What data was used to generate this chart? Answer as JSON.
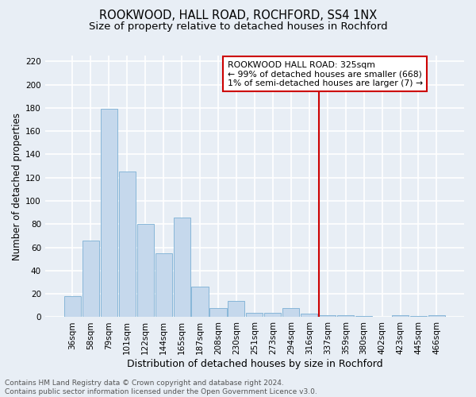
{
  "title": "ROOKWOOD, HALL ROAD, ROCHFORD, SS4 1NX",
  "subtitle": "Size of property relative to detached houses in Rochford",
  "xlabel": "Distribution of detached houses by size in Rochford",
  "ylabel": "Number of detached properties",
  "categories": [
    "36sqm",
    "58sqm",
    "79sqm",
    "101sqm",
    "122sqm",
    "144sqm",
    "165sqm",
    "187sqm",
    "208sqm",
    "230sqm",
    "251sqm",
    "273sqm",
    "294sqm",
    "316sqm",
    "337sqm",
    "359sqm",
    "380sqm",
    "402sqm",
    "423sqm",
    "445sqm",
    "466sqm"
  ],
  "values": [
    18,
    66,
    179,
    125,
    80,
    55,
    86,
    26,
    8,
    14,
    4,
    4,
    8,
    3,
    2,
    2,
    1,
    0,
    2,
    1,
    2
  ],
  "bar_color": "#c5d8ec",
  "bar_edge_color": "#7aafd4",
  "vline_x": 13.55,
  "vline_color": "#cc0000",
  "legend_text_line1": "ROOKWOOD HALL ROAD: 325sqm",
  "legend_text_line2": "← 99% of detached houses are smaller (668)",
  "legend_text_line3": "1% of semi-detached houses are larger (7) →",
  "ylim": [
    0,
    225
  ],
  "yticks": [
    0,
    20,
    40,
    60,
    80,
    100,
    120,
    140,
    160,
    180,
    200,
    220
  ],
  "footer_line1": "Contains HM Land Registry data © Crown copyright and database right 2024.",
  "footer_line2": "Contains public sector information licensed under the Open Government Licence v3.0.",
  "background_color": "#e8eef5",
  "grid_color": "#ffffff",
  "title_fontsize": 10.5,
  "subtitle_fontsize": 9.5,
  "xlabel_fontsize": 9,
  "ylabel_fontsize": 8.5,
  "tick_fontsize": 7.5,
  "footer_fontsize": 6.5,
  "legend_fontsize": 7.8
}
